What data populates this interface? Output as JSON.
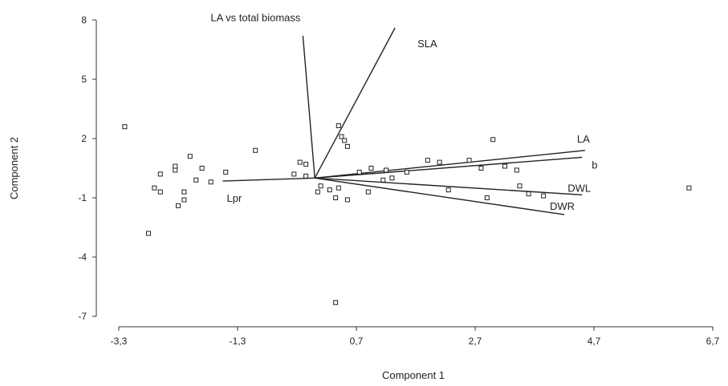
{
  "chart_data": {
    "type": "scatter",
    "subtype": "biplot",
    "xlabel": "Component 1",
    "ylabel": "Component 2",
    "xlim": [
      -3.3,
      6.7
    ],
    "ylim": [
      -7,
      8
    ],
    "xticks": [
      -3.3,
      -1.3,
      0.7,
      2.7,
      4.7,
      6.7
    ],
    "xtick_labels": [
      "-3,3",
      "-1,3",
      "0,7",
      "2,7",
      "4,7",
      "6,7"
    ],
    "yticks": [
      -7,
      -4,
      -1,
      2,
      5,
      8
    ],
    "ytick_labels": [
      "-7",
      "-4",
      "-1",
      "2",
      "5",
      "8"
    ],
    "grid": false,
    "points": [
      {
        "x": -3.2,
        "y": 2.6
      },
      {
        "x": -2.8,
        "y": -2.8
      },
      {
        "x": -2.7,
        "y": -0.5
      },
      {
        "x": -2.6,
        "y": 0.2
      },
      {
        "x": -2.6,
        "y": -0.7
      },
      {
        "x": -2.35,
        "y": 0.4
      },
      {
        "x": -2.35,
        "y": 0.6
      },
      {
        "x": -2.3,
        "y": -1.4
      },
      {
        "x": -2.2,
        "y": -0.7
      },
      {
        "x": -2.2,
        "y": -1.1
      },
      {
        "x": -2.1,
        "y": 1.1
      },
      {
        "x": -2.0,
        "y": -0.1
      },
      {
        "x": -1.9,
        "y": 0.5
      },
      {
        "x": -1.75,
        "y": -0.2
      },
      {
        "x": -1.5,
        "y": 0.3
      },
      {
        "x": -1.0,
        "y": 1.4
      },
      {
        "x": -0.35,
        "y": 0.2
      },
      {
        "x": -0.25,
        "y": 0.8
      },
      {
        "x": -0.15,
        "y": 0.7
      },
      {
        "x": -0.15,
        "y": 0.1
      },
      {
        "x": 0.05,
        "y": -0.7
      },
      {
        "x": 0.1,
        "y": -0.4
      },
      {
        "x": 0.25,
        "y": -0.6
      },
      {
        "x": 0.35,
        "y": -6.3
      },
      {
        "x": 0.35,
        "y": -1.0
      },
      {
        "x": 0.4,
        "y": 2.65
      },
      {
        "x": 0.4,
        "y": -0.5
      },
      {
        "x": 0.45,
        "y": 2.1
      },
      {
        "x": 0.5,
        "y": 1.9
      },
      {
        "x": 0.55,
        "y": 1.6
      },
      {
        "x": 0.55,
        "y": -1.1
      },
      {
        "x": 0.75,
        "y": 0.3
      },
      {
        "x": 0.9,
        "y": -0.7
      },
      {
        "x": 0.95,
        "y": 0.5
      },
      {
        "x": 1.15,
        "y": -0.1
      },
      {
        "x": 1.2,
        "y": 0.4
      },
      {
        "x": 1.3,
        "y": 0.0
      },
      {
        "x": 1.55,
        "y": 0.3
      },
      {
        "x": 1.9,
        "y": 0.9
      },
      {
        "x": 2.1,
        "y": 0.8
      },
      {
        "x": 2.25,
        "y": -0.6
      },
      {
        "x": 2.6,
        "y": 0.9
      },
      {
        "x": 2.8,
        "y": 0.5
      },
      {
        "x": 2.9,
        "y": -1.0
      },
      {
        "x": 3.0,
        "y": 1.95
      },
      {
        "x": 3.2,
        "y": 0.6
      },
      {
        "x": 3.4,
        "y": 0.4
      },
      {
        "x": 3.45,
        "y": -0.4
      },
      {
        "x": 3.6,
        "y": -0.8
      },
      {
        "x": 3.85,
        "y": -0.9
      },
      {
        "x": 6.3,
        "y": -0.5
      }
    ],
    "vectors": [
      {
        "label": "LA vs total biomass",
        "x": -0.2,
        "y": 7.2
      },
      {
        "label": "SLA",
        "x": 1.35,
        "y": 7.6
      },
      {
        "label": "LA",
        "x": 4.55,
        "y": 1.4
      },
      {
        "label": "b",
        "x": 4.5,
        "y": 1.05
      },
      {
        "label": "DWL",
        "x": 4.5,
        "y": -0.85
      },
      {
        "label": "DWR",
        "x": 4.2,
        "y": -1.85
      },
      {
        "label": "Lpr",
        "x": -1.55,
        "y": -0.15
      }
    ]
  }
}
